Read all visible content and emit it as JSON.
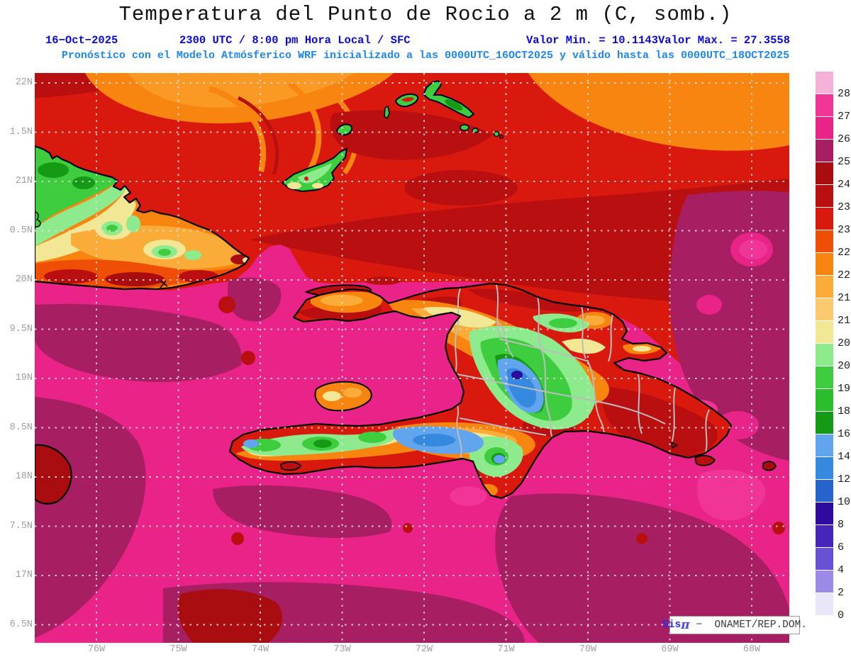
{
  "header": {
    "title": "Temperatura del Punto de Rocio a 2 m (C, somb.)",
    "date": "16−Oct−2025",
    "time": "2300 UTC / 8:00 pm Hora Local / SFC",
    "min_label": "Valor Min. = 10.1143",
    "max_label": "Valor Max. = 27.3558",
    "forecast_line": "Pronóstico con el Modelo Atmósferico WRF inicializado a las 0000UTC_16OCT2025 y válido hasta las  0000UTC_18OCT2025"
  },
  "colors": {
    "header_line2": "#0909dd",
    "header_line3": "#1d86f0",
    "axis_label": "#9e9e9e",
    "coastline": "#000000",
    "admin_border": "#bcbcbc"
  },
  "axes": {
    "lat_labels": [
      "22N",
      "1.5N",
      "21N",
      "0.5N",
      "20N",
      "9.5N",
      "19N",
      "8.5N",
      "18N",
      "7.5N",
      "17N",
      "6.5N"
    ],
    "lon_labels": [
      "76W",
      "75W",
      "74W",
      "73W",
      "72W",
      "71W",
      "70W",
      "69W",
      "68W"
    ]
  },
  "colorbar": {
    "boundary_labels": [
      "28",
      "27",
      "26",
      "25",
      "24.5",
      "23.5",
      "23",
      "22.5",
      "22",
      "21.5",
      "21",
      "20.5",
      "20",
      "19",
      "18",
      "16",
      "14",
      "12",
      "10",
      "8",
      "6",
      "4",
      "2",
      "0"
    ],
    "segment_colors": [
      "#f5b2d8",
      "#f03596",
      "#e92388",
      "#a81e62",
      "#a90d10",
      "#ba0f10",
      "#d9190e",
      "#ee4e06",
      "#f8850f",
      "#fbac38",
      "#fcca6e",
      "#f2e794",
      "#8deb8d",
      "#3ecd3e",
      "#2cbd2c",
      "#149a14",
      "#62a5ef",
      "#358ae0",
      "#2663cb",
      "#2e0a9e",
      "#4526b8",
      "#6a50d2",
      "#9c8ae6",
      "#e9e6fa",
      "#ffffff"
    ]
  },
  "branding": {
    "prefix": "Sis",
    "pi": "π",
    "separator": "−",
    "org": "ONAMET/REP.DOM."
  }
}
